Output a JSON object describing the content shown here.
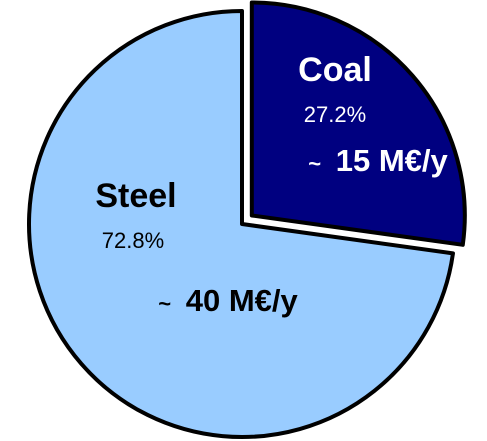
{
  "chart_data": {
    "type": "pie",
    "exploded_slice": "Coal",
    "slices": [
      {
        "name": "Coal",
        "value": 27.2,
        "percent_label": "27.2%",
        "amount_label": "~ 15 M€/y",
        "amount_prefix": "~",
        "amount_text": "15 M€/y",
        "color": "#000080",
        "text_color": "#ffffff"
      },
      {
        "name": "Steel",
        "value": 72.8,
        "percent_label": "72.8%",
        "amount_label": "~ 40 M€/y",
        "amount_prefix": "~",
        "amount_text": "40 M€/y",
        "color": "#99ccff",
        "text_color": "#000000"
      }
    ]
  }
}
